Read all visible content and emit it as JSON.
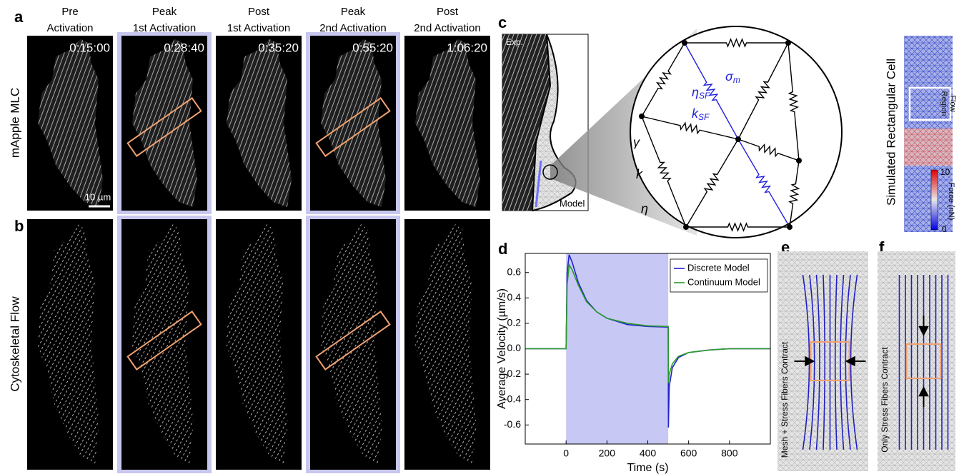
{
  "letters": [
    "a",
    "b",
    "c",
    "d",
    "e",
    "f"
  ],
  "row_labels": [
    "mApple MLC",
    "Cytoskeletal Flow"
  ],
  "columns": [
    {
      "header": [
        "Pre",
        "Activation"
      ],
      "time": "0:15:00",
      "highlighted": false
    },
    {
      "header": [
        "Peak",
        "1st Activation"
      ],
      "time": "0:28:40",
      "highlighted": true
    },
    {
      "header": [
        "Post",
        "1st Activation"
      ],
      "time": "0:35:20",
      "highlighted": false
    },
    {
      "header": [
        "Peak",
        "2nd Activation"
      ],
      "time": "0:55:20",
      "highlighted": true
    },
    {
      "header": [
        "Post",
        "2nd Activation"
      ],
      "time": "1:06:20",
      "highlighted": false
    }
  ],
  "scale_bar": "10 µm",
  "model": {
    "exp_label": "Exp.",
    "model_label": "Model",
    "symbols": [
      {
        "base": "η",
        "sub": "SF"
      },
      {
        "base": "σ",
        "sub": "m"
      },
      {
        "base": "k",
        "sub": "SF"
      },
      {
        "base": "γ"
      },
      {
        "base": "k"
      },
      {
        "base": "η"
      }
    ],
    "sim_title": "Simulated Rectangular Cell",
    "flow_region": [
      "Flow",
      "Region"
    ],
    "colorbar": {
      "label": "Force (nN)",
      "range": [
        0,
        10
      ]
    }
  },
  "e_label": "Mesh + Stress Fibers Contract",
  "f_label": "Only Stress Fibers Contract",
  "chart_data": {
    "type": "line",
    "xlabel": "Time (s)",
    "ylabel": "Average Velocity (µm/s)",
    "x": [
      -200,
      0,
      5,
      15,
      30,
      60,
      100,
      150,
      200,
      300,
      400,
      500,
      501,
      505,
      520,
      550,
      600,
      700,
      800,
      1000
    ],
    "series": [
      {
        "name": "Discrete Model",
        "color": "#2222cc",
        "values": [
          0,
          0,
          0.6,
          0.74,
          0.68,
          0.52,
          0.38,
          0.29,
          0.24,
          0.19,
          0.175,
          0.17,
          -0.62,
          -0.3,
          -0.15,
          -0.07,
          -0.03,
          -0.01,
          0,
          0
        ]
      },
      {
        "name": "Continuum Model",
        "color": "#2a9a2a",
        "values": [
          0,
          0,
          0.5,
          0.66,
          0.62,
          0.5,
          0.37,
          0.29,
          0.24,
          0.2,
          0.18,
          0.175,
          -0.27,
          -0.2,
          -0.12,
          -0.06,
          -0.03,
          -0.01,
          0,
          0
        ]
      }
    ],
    "highlight_x": [
      0,
      500
    ],
    "highlight_color": "#c8c8f5",
    "xlim": [
      -200,
      1000
    ],
    "xticks": [
      0,
      200,
      400,
      600,
      800
    ],
    "ylim": [
      -0.75,
      0.75
    ],
    "yticks": [
      -0.6,
      -0.4,
      -0.2,
      {
        "value": 0,
        "label": "0.0"
      },
      0.2,
      0.4,
      0.6
    ],
    "legend": "upper right"
  }
}
